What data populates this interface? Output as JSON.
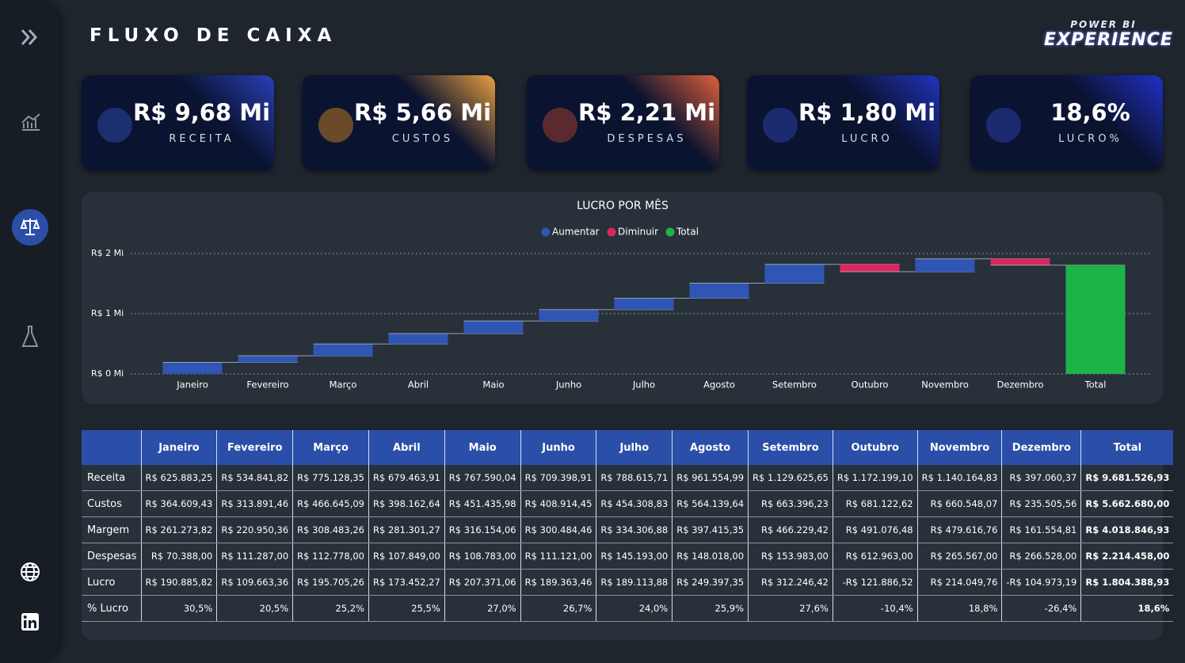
{
  "header": {
    "title": "FLUXO DE CAIXA",
    "logo": {
      "top": "POWER BI",
      "bottom": "EXPERIENCE"
    }
  },
  "kpis": [
    {
      "value": "R$ 9,68 Mi",
      "label": "RECEITA"
    },
    {
      "value": "R$ 5,66 Mi",
      "label": "CUSTOS"
    },
    {
      "value": "R$ 2,21 Mi",
      "label": "DESPESAS"
    },
    {
      "value": "R$ 1,80 Mi",
      "label": "LUCRO"
    },
    {
      "value": "18,6%",
      "label": "LUCRO%"
    }
  ],
  "chart_data": {
    "type": "waterfall",
    "title": "LUCRO POR MÊS",
    "legend": [
      {
        "name": "Aumentar",
        "color": "#2f55b5"
      },
      {
        "name": "Diminuir",
        "color": "#e0245e"
      },
      {
        "name": "Total",
        "color": "#1db447"
      }
    ],
    "categories": [
      "Janeiro",
      "Fevereiro",
      "Março",
      "Abril",
      "Maio",
      "Junho",
      "Julho",
      "Agosto",
      "Setembro",
      "Outubro",
      "Novembro",
      "Dezembro",
      "Total"
    ],
    "values": [
      0.19088582,
      0.10966336,
      0.19570526,
      0.17345227,
      0.20737106,
      0.18936346,
      0.18911388,
      0.24939735,
      0.31224642,
      -0.12188652,
      0.21404976,
      -0.10497319,
      1.80438893
    ],
    "ylim": [
      0,
      2.13
    ],
    "yticks": [
      {
        "value": 0,
        "label": "R$ 0 Mi"
      },
      {
        "value": 1,
        "label": "R$ 1 Mi"
      },
      {
        "value": 2,
        "label": "R$ 2 Mi"
      }
    ],
    "grid": true
  },
  "table": {
    "columns": [
      "Janeiro",
      "Fevereiro",
      "Março",
      "Abril",
      "Maio",
      "Junho",
      "Julho",
      "Agosto",
      "Setembro",
      "Outubro",
      "Novembro",
      "Dezembro",
      "Total"
    ],
    "rows": [
      {
        "label": "Receita",
        "cells": [
          "R$ 625.883,25",
          "R$ 534.841,82",
          "R$ 775.128,35",
          "R$ 679.463,91",
          "R$ 767.590,04",
          "R$ 709.398,91",
          "R$ 788.615,71",
          "R$ 961.554,99",
          "R$ 1.129.625,65",
          "R$ 1.172.199,10",
          "R$ 1.140.164,83",
          "R$ 397.060,37",
          "R$ 9.681.526,93"
        ]
      },
      {
        "label": "Custos",
        "cells": [
          "R$ 364.609,43",
          "R$ 313.891,46",
          "R$ 466.645,09",
          "R$ 398.162,64",
          "R$ 451.435,98",
          "R$ 408.914,45",
          "R$ 454.308,83",
          "R$ 564.139,64",
          "R$ 663.396,23",
          "R$ 681.122,62",
          "R$ 660.548,07",
          "R$ 235.505,56",
          "R$ 5.662.680,00"
        ]
      },
      {
        "label": "Margem",
        "cells": [
          "R$ 261.273,82",
          "R$ 220.950,36",
          "R$ 308.483,26",
          "R$ 281.301,27",
          "R$ 316.154,06",
          "R$ 300.484,46",
          "R$ 334.306,88",
          "R$ 397.415,35",
          "R$ 466.229,42",
          "R$ 491.076,48",
          "R$ 479.616,76",
          "R$ 161.554,81",
          "R$ 4.018.846,93"
        ]
      },
      {
        "label": "Despesas",
        "cells": [
          "R$ 70.388,00",
          "R$ 111.287,00",
          "R$ 112.778,00",
          "R$ 107.849,00",
          "R$ 108.783,00",
          "R$ 111.121,00",
          "R$ 145.193,00",
          "R$ 148.018,00",
          "R$ 153.983,00",
          "R$ 612.963,00",
          "R$ 265.567,00",
          "R$ 266.528,00",
          "R$ 2.214.458,00"
        ]
      },
      {
        "label": "Lucro",
        "cells": [
          "R$ 190.885,82",
          "R$ 109.663,36",
          "R$ 195.705,26",
          "R$ 173.452,27",
          "R$ 207.371,06",
          "R$ 189.363,46",
          "R$ 189.113,88",
          "R$ 249.397,35",
          "R$ 312.246,42",
          "-R$ 121.886,52",
          "R$ 214.049,76",
          "-R$ 104.973,19",
          "R$ 1.804.388,93"
        ]
      },
      {
        "label": "% Lucro",
        "cells": [
          "30,5%",
          "20,5%",
          "25,2%",
          "25,5%",
          "27,0%",
          "26,7%",
          "24,0%",
          "25,9%",
          "27,6%",
          "-10,4%",
          "18,8%",
          "-26,4%",
          "18,6%"
        ]
      }
    ]
  }
}
